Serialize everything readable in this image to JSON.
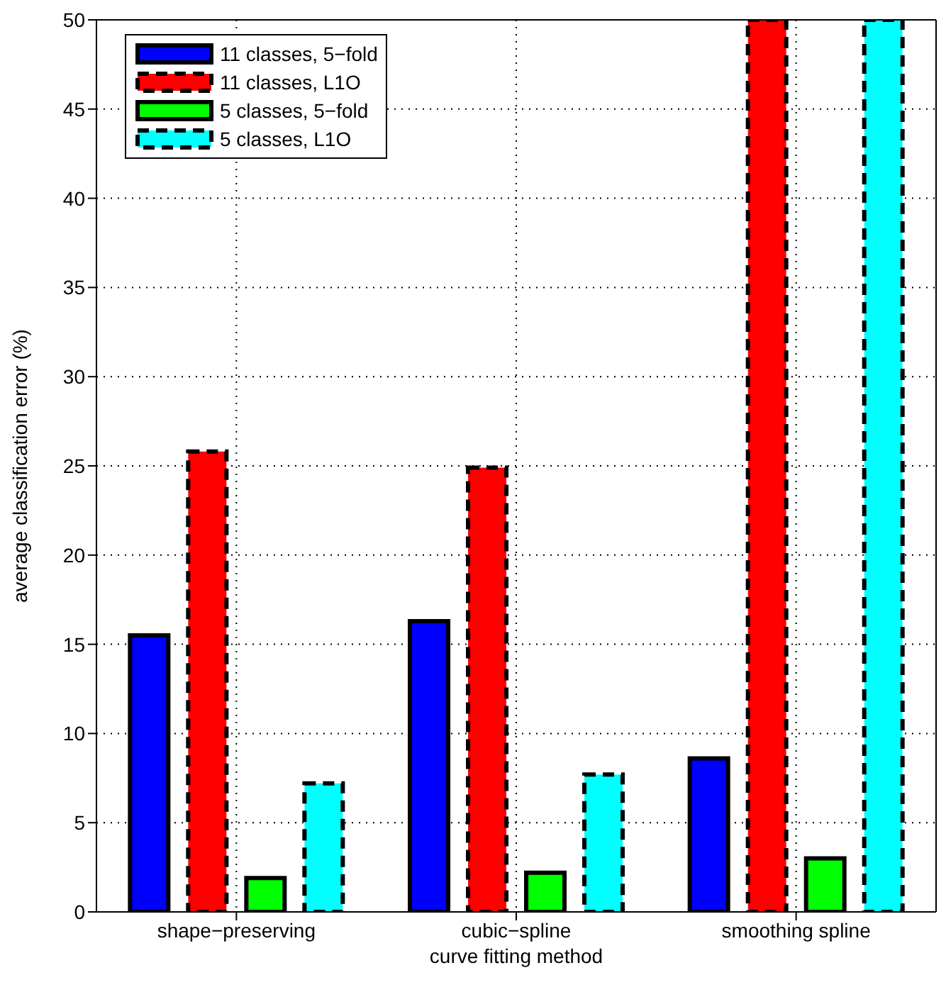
{
  "chart_data": {
    "type": "bar",
    "xlabel": "curve fitting method",
    "ylabel": "average classification error (%)",
    "categories": [
      "shape−preserving",
      "cubic−spline",
      "smoothing spline"
    ],
    "series": [
      {
        "name": "11 classes, 5−fold",
        "color": "#0000ff",
        "values": [
          15.5,
          16.3,
          8.6
        ],
        "line_style": "solid"
      },
      {
        "name": "11 classes, L1O",
        "color": "#ff0000",
        "values": [
          25.8,
          24.9,
          50
        ],
        "line_style": "dashed"
      },
      {
        "name": "5 classes, 5−fold",
        "color": "#00ff00",
        "values": [
          1.9,
          2.2,
          3.0
        ],
        "line_style": "solid"
      },
      {
        "name": "5 classes, L1O",
        "color": "#00ffff",
        "values": [
          7.2,
          7.7,
          50
        ],
        "line_style": "dashed"
      }
    ],
    "ylim": [
      0,
      50
    ],
    "yticks": [
      0,
      5,
      10,
      15,
      20,
      25,
      30,
      35,
      40,
      45,
      50
    ],
    "grid": true,
    "legend": "top left"
  }
}
